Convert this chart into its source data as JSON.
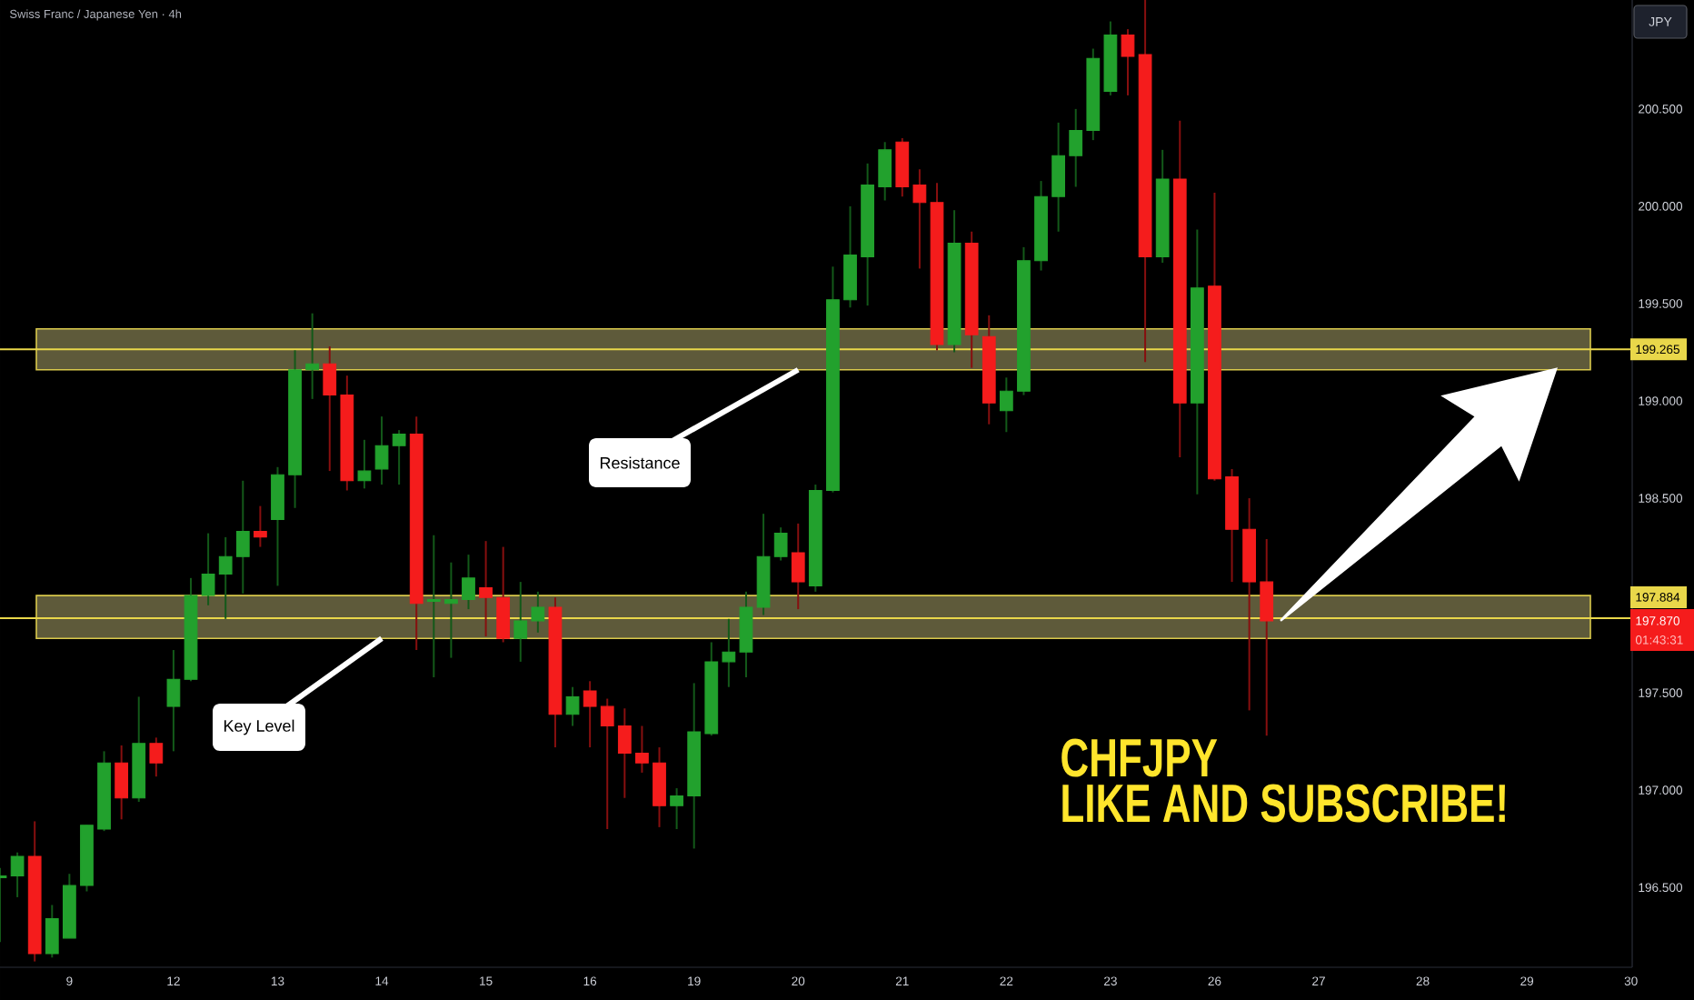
{
  "chart_data": {
    "type": "candlestick",
    "title": "Swiss Franc / Japanese Yen · 4h",
    "ylabel": "JPY",
    "categories": [
      null,
      null,
      null,
      null,
      "9",
      null,
      null,
      null,
      null,
      null,
      "12",
      null,
      null,
      null,
      null,
      null,
      "13",
      null,
      null,
      null,
      null,
      null,
      "14",
      null,
      null,
      null,
      null,
      null,
      "15",
      null,
      null,
      null,
      null,
      null,
      "16",
      null,
      null,
      null,
      null,
      null,
      "19",
      null,
      null,
      null,
      null,
      null,
      "20",
      null,
      null,
      null,
      null,
      null,
      "21",
      null,
      null,
      null,
      null,
      null,
      "22",
      null,
      null,
      null,
      null,
      null,
      "23",
      null,
      null,
      null,
      null,
      null,
      "26",
      null,
      null,
      null,
      null,
      null,
      "27",
      null,
      null,
      null,
      null,
      null,
      "28",
      null,
      null,
      null,
      null,
      null,
      "29",
      null,
      null,
      null,
      null,
      null,
      "30"
    ],
    "ohlc": [
      [
        196.55,
        196.6,
        196.22,
        196.56
      ],
      [
        196.56,
        196.68,
        196.45,
        196.66
      ],
      [
        196.66,
        196.84,
        196.12,
        196.16
      ],
      [
        196.16,
        196.41,
        196.14,
        196.34
      ],
      [
        196.24,
        196.57,
        196.24,
        196.51
      ],
      [
        196.51,
        196.82,
        196.48,
        196.82
      ],
      [
        196.8,
        197.2,
        196.79,
        197.14
      ],
      [
        197.14,
        197.23,
        196.85,
        196.96
      ],
      [
        196.96,
        197.48,
        196.94,
        197.24
      ],
      [
        197.24,
        197.27,
        197.07,
        197.14
      ],
      [
        197.43,
        197.72,
        197.2,
        197.57
      ],
      [
        197.57,
        198.09,
        197.56,
        198.0
      ],
      [
        198.0,
        198.32,
        197.95,
        198.11
      ],
      [
        198.11,
        198.3,
        197.88,
        198.2
      ],
      [
        198.2,
        198.59,
        198.01,
        198.33
      ],
      [
        198.33,
        198.46,
        198.25,
        198.3
      ],
      [
        198.39,
        198.66,
        198.05,
        198.62
      ],
      [
        198.62,
        199.26,
        198.45,
        199.16
      ],
      [
        199.16,
        199.45,
        199.01,
        199.19
      ],
      [
        199.19,
        199.28,
        198.64,
        199.03
      ],
      [
        199.03,
        199.13,
        198.54,
        198.59
      ],
      [
        198.59,
        198.8,
        198.55,
        198.64
      ],
      [
        198.65,
        198.92,
        198.57,
        198.77
      ],
      [
        198.77,
        198.85,
        198.57,
        198.83
      ],
      [
        198.83,
        198.92,
        197.72,
        197.96
      ],
      [
        197.97,
        198.31,
        197.58,
        197.98
      ],
      [
        197.96,
        198.17,
        197.68,
        197.98
      ],
      [
        197.98,
        198.21,
        197.93,
        198.09
      ],
      [
        198.04,
        198.28,
        197.79,
        197.99
      ],
      [
        197.99,
        198.25,
        197.76,
        197.78
      ],
      [
        197.78,
        198.07,
        197.66,
        197.87
      ],
      [
        197.87,
        198.02,
        197.81,
        197.94
      ],
      [
        197.94,
        197.99,
        197.22,
        197.39
      ],
      [
        197.39,
        197.53,
        197.33,
        197.48
      ],
      [
        197.51,
        197.56,
        197.22,
        197.43
      ],
      [
        197.43,
        197.47,
        196.8,
        197.33
      ],
      [
        197.33,
        197.42,
        196.96,
        197.19
      ],
      [
        197.19,
        197.33,
        197.09,
        197.14
      ],
      [
        197.14,
        197.22,
        196.81,
        196.92
      ],
      [
        196.92,
        197.01,
        196.8,
        196.97
      ],
      [
        196.97,
        197.55,
        196.7,
        197.3
      ],
      [
        197.29,
        197.76,
        197.28,
        197.66
      ],
      [
        197.66,
        197.88,
        197.53,
        197.71
      ],
      [
        197.71,
        198.02,
        197.58,
        197.94
      ],
      [
        197.94,
        198.42,
        197.9,
        198.2
      ],
      [
        198.2,
        198.35,
        198.18,
        198.32
      ],
      [
        198.22,
        198.37,
        197.93,
        198.07
      ],
      [
        198.05,
        198.57,
        198.02,
        198.54
      ],
      [
        198.54,
        199.69,
        198.53,
        199.52
      ],
      [
        199.52,
        200.0,
        199.48,
        199.75
      ],
      [
        199.74,
        200.22,
        199.49,
        200.11
      ],
      [
        200.1,
        200.33,
        200.03,
        200.29
      ],
      [
        200.33,
        200.35,
        200.05,
        200.1
      ],
      [
        200.11,
        200.19,
        199.68,
        200.02
      ],
      [
        200.02,
        200.12,
        199.26,
        199.29
      ],
      [
        199.29,
        199.98,
        199.25,
        199.81
      ],
      [
        199.81,
        199.87,
        199.17,
        199.34
      ],
      [
        199.33,
        199.44,
        198.88,
        198.99
      ],
      [
        198.95,
        199.12,
        198.84,
        199.05
      ],
      [
        199.05,
        199.79,
        199.03,
        199.72
      ],
      [
        199.72,
        200.13,
        199.67,
        200.05
      ],
      [
        200.05,
        200.43,
        199.87,
        200.26
      ],
      [
        200.26,
        200.5,
        200.1,
        200.39
      ],
      [
        200.39,
        200.81,
        200.34,
        200.76
      ],
      [
        200.59,
        200.95,
        200.57,
        200.88
      ],
      [
        200.88,
        200.91,
        200.57,
        200.77
      ],
      [
        200.78,
        201.06,
        199.2,
        199.74
      ],
      [
        199.74,
        200.29,
        199.71,
        200.14
      ],
      [
        200.14,
        200.44,
        198.71,
        198.99
      ],
      [
        198.99,
        199.88,
        198.52,
        199.58
      ],
      [
        199.59,
        200.07,
        198.59,
        198.6
      ],
      [
        198.61,
        198.65,
        198.07,
        198.34
      ],
      [
        198.34,
        198.5,
        197.41,
        198.07
      ],
      [
        198.07,
        198.29,
        197.28,
        197.87
      ],
      null,
      null,
      null,
      null,
      null,
      null,
      null,
      null,
      null,
      null,
      null,
      null,
      null,
      null,
      null,
      null,
      null,
      null,
      null,
      null,
      null
    ],
    "colors": [
      "#22a12d",
      "#22a12d",
      "#f51c1c",
      "#22a12d",
      "#22a12d",
      "#22a12d",
      "#22a12d",
      "#f51c1c",
      "#22a12d",
      "#f51c1c",
      "#22a12d",
      "#22a12d",
      "#22a12d",
      "#22a12d",
      "#22a12d",
      "#f51c1c",
      "#22a12d",
      "#22a12d",
      "#22a12d",
      "#f51c1c",
      "#f51c1c",
      "#22a12d",
      "#22a12d",
      "#22a12d",
      "#f51c1c",
      "#22a12d",
      "#22a12d",
      "#22a12d",
      "#f51c1c",
      "#f51c1c",
      "#22a12d",
      "#22a12d",
      "#f51c1c",
      "#22a12d",
      "#f51c1c",
      "#f51c1c",
      "#f51c1c",
      "#f51c1c",
      "#f51c1c",
      "#22a12d",
      "#22a12d",
      "#22a12d",
      "#22a12d",
      "#22a12d",
      "#22a12d",
      "#22a12d",
      "#f51c1c",
      "#22a12d",
      "#22a12d",
      "#22a12d",
      "#22a12d",
      "#22a12d",
      "#f51c1c",
      "#f51c1c",
      "#f51c1c",
      "#22a12d",
      "#f51c1c",
      "#f51c1c",
      "#22a12d",
      "#22a12d",
      "#22a12d",
      "#22a12d",
      "#22a12d",
      "#22a12d",
      "#22a12d",
      "#f51c1c",
      "#f51c1c",
      "#22a12d",
      "#f51c1c",
      "#22a12d",
      "#f51c1c",
      "#f51c1c",
      "#f51c1c",
      "#f51c1c",
      null,
      null,
      null,
      null,
      null,
      null,
      null,
      null,
      null,
      null,
      null,
      null,
      null,
      null,
      null,
      null,
      null,
      null,
      null,
      null,
      null
    ],
    "ylim": [
      196.09,
      201.06
    ],
    "yticks": [
      {
        "value": 196.5,
        "label": "196.500"
      },
      {
        "value": 197,
        "label": "197.000"
      },
      {
        "value": 197.5,
        "label": "197.500"
      },
      {
        "value": 198.5,
        "label": "198.500"
      },
      {
        "value": 199,
        "label": "199.000"
      },
      {
        "value": 199.5,
        "label": "199.500"
      },
      {
        "value": 200,
        "label": "200.000"
      },
      {
        "value": 200.5,
        "label": "200.500"
      }
    ],
    "ref_lines": [
      {
        "axis": "y",
        "value": 199.265,
        "label": "199.265",
        "color": "#e9d74a"
      },
      {
        "axis": "y",
        "value": 197.884,
        "label": "197.884",
        "color": "#e9d74a"
      }
    ],
    "bands": [
      {
        "axis": "y",
        "from": 199.16,
        "to": 199.37,
        "color": "#d9c94c"
      },
      {
        "axis": "y",
        "from": 197.78,
        "to": 198.0,
        "color": "#d9c94c"
      }
    ],
    "annotations": [
      {
        "text": "Resistance",
        "x": "20",
        "y": 199.16
      },
      {
        "text": "Key Level",
        "x": "14",
        "y": 197.78
      },
      "197.870",
      "01:43:31",
      "CHFJPY",
      "LIKE AND SUBSCRIBE!"
    ]
  }
}
